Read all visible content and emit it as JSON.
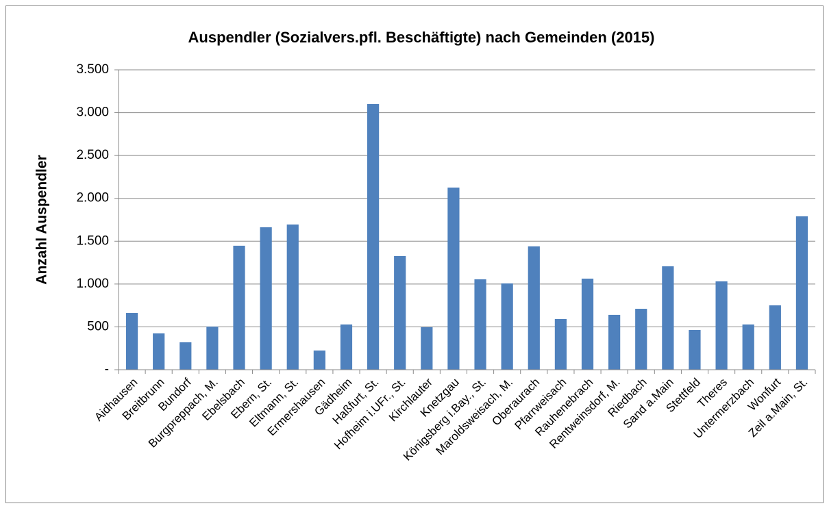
{
  "chart_data": {
    "type": "bar",
    "title": "Auspendler (Sozialvers.pfl. Beschäftigte) nach Gemeinden (2015)",
    "y_label": "Anzahl Auspendler",
    "categories": [
      "Aidhausen",
      "Breitbrunn",
      "Bundorf",
      "Burgpreppach, M.",
      "Ebelsbach",
      "Ebern, St.",
      "Eltmann, St.",
      "Ermershausen",
      "Gädheim",
      "Haßfurt, St.",
      "Hofheim i.UFr., St.",
      "Kirchlauter",
      "Knetzgau",
      "Königsberg i.Bay., St.",
      "Maroldsweisach, M.",
      "Oberaurach",
      "Pfarrweisach",
      "Rauhenebrach",
      "Rentweinsdorf, M.",
      "Riedbach",
      "Sand a.Main",
      "Stettfeld",
      "Theres",
      "Untermerzbach",
      "Wonfurt",
      "Zeil a.Main, St."
    ],
    "values": [
      663,
      424,
      320,
      503,
      1447,
      1663,
      1695,
      224,
      528,
      3101,
      1327,
      496,
      2126,
      1055,
      1007,
      1440,
      592,
      1063,
      640,
      711,
      1207,
      464,
      1031,
      528,
      751,
      1790
    ],
    "color": "#4f81bd",
    "ylim": [
      0,
      3500
    ],
    "yticks": [
      {
        "value": 0,
        "label": "-"
      },
      500,
      {
        "value": 1000,
        "label": "1.000"
      },
      {
        "value": 1500,
        "label": "1.500"
      },
      {
        "value": 2000,
        "label": "2.000"
      },
      {
        "value": 2500,
        "label": "2.500"
      },
      {
        "value": 3000,
        "label": "3.000"
      },
      {
        "value": 3500,
        "label": "3.500"
      }
    ],
    "grid": true
  }
}
